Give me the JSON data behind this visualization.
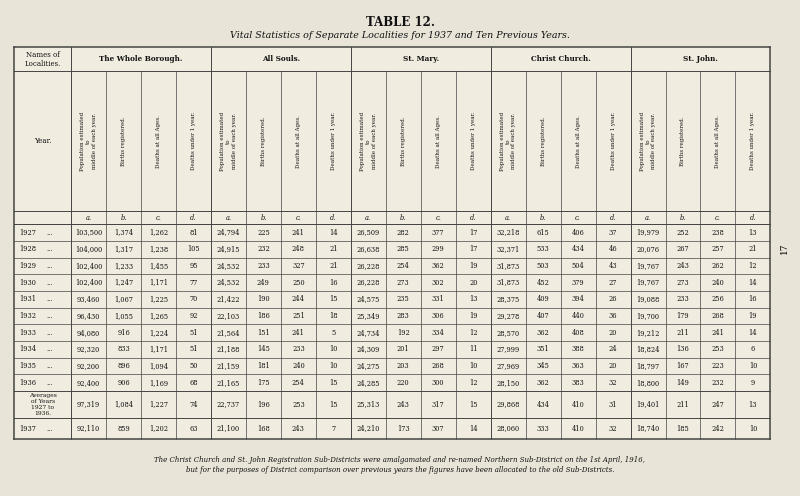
{
  "title": "TABLE 12.",
  "subtitle": "Vital Statistics of Separate Localities for 1937 and Ten Previous Years.",
  "bg_color": "#e8e4d8",
  "table_bg": "#f0ece0",
  "footnote": "The Christ Church and St. John Registration Sub-Districts were amalgamated and re-named Northern Sub-District on the 1st April, 1916,\nbut for the purposes of District comparison over previous years the figures have been allocated to the old Sub-Districts.",
  "col_headers_rotated": [
    "Population estimated\nto\nmiddle of each year.",
    "Births registered.",
    "Deaths at all Ages.",
    "Deaths under 1 year."
  ],
  "years": [
    "1927",
    "1928",
    "1929",
    "1930",
    "1931",
    "1932",
    "1933",
    "1934",
    "1935",
    "1936"
  ],
  "avg_label": "Averages\nof Years\n1927 to\n1936.",
  "final_year": "1937",
  "data": {
    "1927": {
      "whole": [
        103500,
        1374,
        1262,
        81
      ],
      "souls": [
        24794,
        225,
        241,
        14
      ],
      "mary": [
        26509,
        282,
        377,
        17
      ],
      "christ": [
        32218,
        615,
        406,
        37
      ],
      "john": [
        19979,
        252,
        238,
        13
      ]
    },
    "1928": {
      "whole": [
        104000,
        1317,
        1238,
        105
      ],
      "souls": [
        24915,
        232,
        248,
        21
      ],
      "mary": [
        26638,
        285,
        299,
        17
      ],
      "christ": [
        32371,
        533,
        434,
        46
      ],
      "john": [
        20076,
        267,
        257,
        21
      ]
    },
    "1929": {
      "whole": [
        102400,
        1233,
        1455,
        95
      ],
      "souls": [
        24532,
        233,
        327,
        21
      ],
      "mary": [
        26228,
        254,
        362,
        19
      ],
      "christ": [
        31873,
        503,
        504,
        43
      ],
      "john": [
        19767,
        243,
        262,
        12
      ]
    },
    "1930": {
      "whole": [
        102400,
        1247,
        1171,
        77
      ],
      "souls": [
        24532,
        249,
        250,
        16
      ],
      "mary": [
        26228,
        273,
        302,
        20
      ],
      "christ": [
        31873,
        452,
        379,
        27
      ],
      "john": [
        19767,
        273,
        240,
        14
      ]
    },
    "1931": {
      "whole": [
        93460,
        1067,
        1225,
        70
      ],
      "souls": [
        21422,
        190,
        244,
        15
      ],
      "mary": [
        24575,
        235,
        331,
        13
      ],
      "christ": [
        28375,
        409,
        394,
        26
      ],
      "john": [
        19088,
        233,
        256,
        16
      ]
    },
    "1932": {
      "whole": [
        96430,
        1055,
        1265,
        92
      ],
      "souls": [
        22103,
        186,
        251,
        18
      ],
      "mary": [
        25349,
        283,
        306,
        19
      ],
      "christ": [
        29278,
        407,
        440,
        36
      ],
      "john": [
        19700,
        179,
        268,
        19
      ]
    },
    "1933": {
      "whole": [
        94080,
        916,
        1224,
        51
      ],
      "souls": [
        21564,
        151,
        241,
        5
      ],
      "mary": [
        24734,
        192,
        334,
        12
      ],
      "christ": [
        28570,
        362,
        408,
        20
      ],
      "john": [
        19212,
        211,
        241,
        14
      ]
    },
    "1934": {
      "whole": [
        92320,
        833,
        1171,
        51
      ],
      "souls": [
        21188,
        145,
        233,
        10
      ],
      "mary": [
        24309,
        201,
        297,
        11
      ],
      "christ": [
        27999,
        351,
        388,
        24
      ],
      "john": [
        18824,
        136,
        253,
        6
      ]
    },
    "1935": {
      "whole": [
        92200,
        896,
        1094,
        50
      ],
      "souls": [
        21159,
        181,
        240,
        10
      ],
      "mary": [
        24275,
        203,
        268,
        10
      ],
      "christ": [
        27969,
        345,
        363,
        20
      ],
      "john": [
        18797,
        167,
        223,
        10
      ]
    },
    "1936": {
      "whole": [
        92400,
        906,
        1169,
        68
      ],
      "souls": [
        21165,
        175,
        254,
        15
      ],
      "mary": [
        24285,
        220,
        300,
        12
      ],
      "christ": [
        28150,
        362,
        383,
        32
      ],
      "john": [
        18800,
        149,
        232,
        9
      ]
    }
  },
  "avg": {
    "whole": [
      97319,
      1084,
      1227,
      74
    ],
    "souls": [
      22737,
      196,
      253,
      15
    ],
    "mary": [
      25313,
      243,
      317,
      15
    ],
    "christ": [
      29868,
      434,
      410,
      31
    ],
    "john": [
      19401,
      211,
      247,
      13
    ]
  },
  "data_1937": {
    "whole": [
      92110,
      859,
      1202,
      63
    ],
    "souls": [
      21100,
      168,
      243,
      7
    ],
    "mary": [
      24210,
      173,
      307,
      14
    ],
    "christ": [
      28060,
      333,
      410,
      32
    ],
    "john": [
      18740,
      185,
      242,
      10
    ]
  }
}
